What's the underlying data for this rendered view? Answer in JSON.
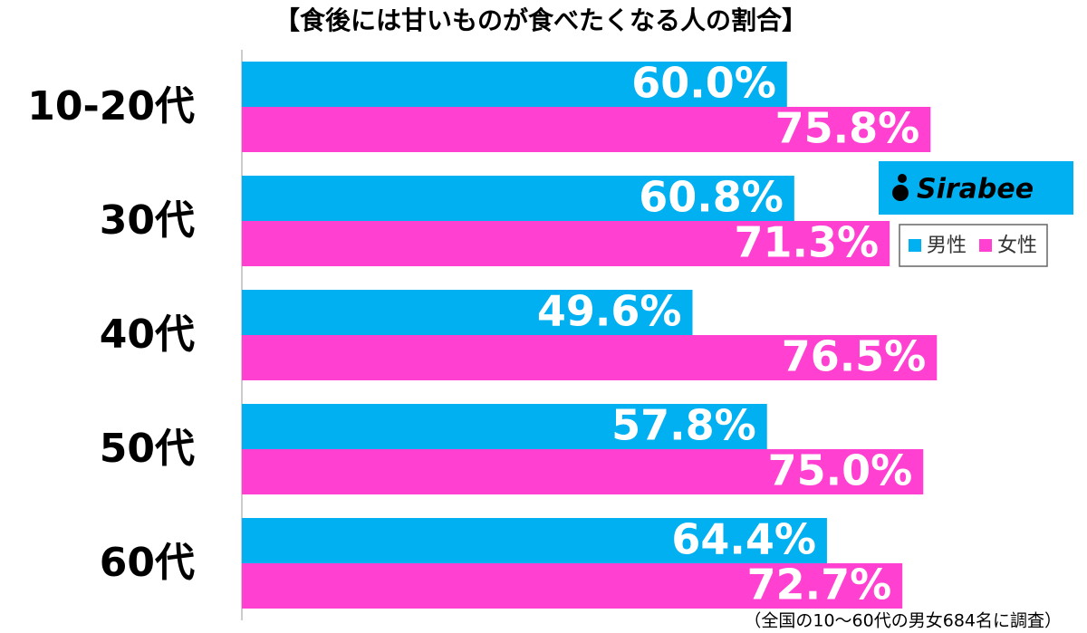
{
  "chart_data": {
    "type": "hbar",
    "title": "【食後には甘いものが食べたくなる人の割合】",
    "categories": [
      "10-20代",
      "30代",
      "40代",
      "50代",
      "60代"
    ],
    "series": [
      {
        "name": "男性",
        "color": "#00b0f0",
        "values": [
          60.0,
          60.8,
          49.6,
          57.8,
          64.4
        ],
        "value_labels": [
          "60.0%",
          "60.8%",
          "49.6%",
          "57.8%",
          "64.4%"
        ]
      },
      {
        "name": "女性",
        "color": "#ff40d0",
        "values": [
          75.8,
          71.3,
          76.5,
          75.0,
          72.7
        ],
        "value_labels": [
          "75.8%",
          "71.3%",
          "76.5%",
          "75.0%",
          "72.7%"
        ]
      }
    ],
    "logo": "Sirabee",
    "note": "（全国の10〜60代の男女684名に調査）"
  }
}
